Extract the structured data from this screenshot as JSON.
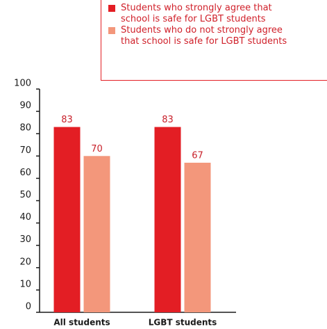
{
  "chart_data": {
    "type": "bar",
    "categories": [
      "All students",
      "LGBT students"
    ],
    "series": [
      {
        "name": "Students who strongly agree that school is safe for LGBT students",
        "color": "#e31e24",
        "values": [
          83,
          83
        ]
      },
      {
        "name": "Students who do not strongly agree that school is safe for LGBT students",
        "color": "#f3977b",
        "values": [
          70,
          67
        ]
      }
    ],
    "ylim": [
      0,
      100
    ],
    "yticks": [
      0,
      10,
      20,
      30,
      40,
      50,
      60,
      70,
      80,
      90,
      100
    ],
    "legend": "top-right"
  }
}
